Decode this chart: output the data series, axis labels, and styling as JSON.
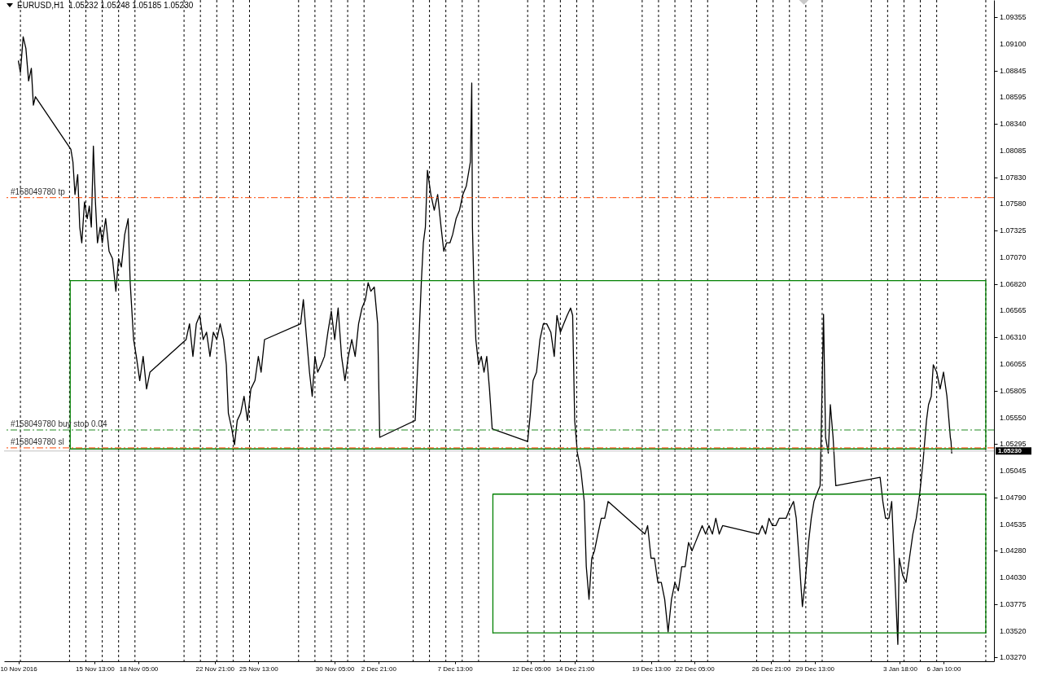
{
  "chart_data": {
    "type": "line",
    "title": "EURUSD,H1  1.05232 1.05248 1.05185 1.05230",
    "xlim": [
      "2016-11-10T00:00",
      "2017-01-09T12:00"
    ],
    "ylim": [
      1.0323,
      1.0952
    ],
    "xticks": [
      {
        "value": "2016-11-10T21:00",
        "label": "10 Nov 2016"
      },
      {
        "value": "2016-11-15T13:00",
        "label": "15 Nov 13:00"
      },
      {
        "value": "2016-11-18T05:00",
        "label": "18 Nov 05:00"
      },
      {
        "value": "2016-11-22T21:00",
        "label": "22 Nov 21:00"
      },
      {
        "value": "2016-11-25T13:00",
        "label": "25 Nov 13:00"
      },
      {
        "value": "2016-11-30T05:00",
        "label": "30 Nov 05:00"
      },
      {
        "value": "2016-12-02T21:00",
        "label": "2 Dec 21:00"
      },
      {
        "value": "2016-12-07T13:00",
        "label": "7 Dec 13:00"
      },
      {
        "value": "2016-12-12T05:00",
        "label": "12 Dec 05:00"
      },
      {
        "value": "2016-12-14T21:00",
        "label": "14 Dec 21:00"
      },
      {
        "value": "2016-12-19T13:00",
        "label": "19 Dec 13:00"
      },
      {
        "value": "2016-12-22T05:00",
        "label": "22 Dec 05:00"
      },
      {
        "value": "2016-12-26T21:00",
        "label": "26 Dec 21:00"
      },
      {
        "value": "2016-12-29T13:00",
        "label": "29 Dec 13:00"
      },
      {
        "value": "2017-01-03T18:00",
        "label": "3 Jan 18:00"
      },
      {
        "value": "2017-01-06T10:00",
        "label": "6 Jan 10:00"
      },
      {
        "value": "2016-11-11",
        "label": null
      },
      {
        "value": "2016-11-14",
        "label": null
      },
      {
        "value": "2016-11-15",
        "label": null
      },
      {
        "value": "2016-11-16",
        "label": null
      },
      {
        "value": "2016-11-17",
        "label": null
      },
      {
        "value": "2016-11-18",
        "label": null
      },
      {
        "value": "2016-11-21",
        "label": null
      },
      {
        "value": "2016-11-22",
        "label": null
      },
      {
        "value": "2016-11-23",
        "label": null
      },
      {
        "value": "2016-11-24",
        "label": null
      },
      {
        "value": "2016-11-25",
        "label": null
      },
      {
        "value": "2016-11-28",
        "label": null
      },
      {
        "value": "2016-11-29",
        "label": null
      },
      {
        "value": "2016-11-30",
        "label": null
      },
      {
        "value": "2016-12-01",
        "label": null
      },
      {
        "value": "2016-12-02",
        "label": null
      },
      {
        "value": "2016-12-05",
        "label": null
      },
      {
        "value": "2016-12-06",
        "label": null
      },
      {
        "value": "2016-12-07",
        "label": null
      },
      {
        "value": "2016-12-08",
        "label": null
      },
      {
        "value": "2016-12-09",
        "label": null
      },
      {
        "value": "2016-12-12",
        "label": null
      },
      {
        "value": "2016-12-13",
        "label": null
      },
      {
        "value": "2016-12-14",
        "label": null
      },
      {
        "value": "2016-12-15",
        "label": null
      },
      {
        "value": "2016-12-16",
        "label": null
      },
      {
        "value": "2016-12-19",
        "label": null
      },
      {
        "value": "2016-12-20",
        "label": null
      },
      {
        "value": "2016-12-21",
        "label": null
      },
      {
        "value": "2016-12-22",
        "label": null
      },
      {
        "value": "2016-12-23",
        "label": null
      },
      {
        "value": "2016-12-26",
        "label": null
      },
      {
        "value": "2016-12-27",
        "label": null
      },
      {
        "value": "2016-12-28",
        "label": null
      },
      {
        "value": "2016-12-29",
        "label": null
      },
      {
        "value": "2016-12-30",
        "label": null
      },
      {
        "value": "2017-01-02",
        "label": null
      },
      {
        "value": "2017-01-03",
        "label": null
      },
      {
        "value": "2017-01-04",
        "label": null
      },
      {
        "value": "2017-01-05",
        "label": null
      },
      {
        "value": "2017-01-06",
        "label": null
      },
      {
        "value": "2017-01-09",
        "label": null
      }
    ],
    "yticks": [
      1.09355,
      {
        "value": 1.091,
        "label": "1.09100"
      },
      1.08845,
      1.08595,
      {
        "value": 1.0834,
        "label": "1.08340"
      },
      1.08085,
      {
        "value": 1.0783,
        "label": "1.07830"
      },
      {
        "value": 1.0758,
        "label": "1.07580"
      },
      1.07325,
      {
        "value": 1.0707,
        "label": "1.07070"
      },
      {
        "value": 1.0682,
        "label": "1.06820"
      },
      1.06565,
      {
        "value": 1.0631,
        "label": "1.06310"
      },
      1.06055,
      1.05805,
      {
        "value": 1.0555,
        "label": "1.05550"
      },
      1.05295,
      1.05045,
      {
        "value": 1.0479,
        "label": "1.04790"
      },
      1.04535,
      {
        "value": 1.0428,
        "label": "1.04280"
      },
      {
        "value": 1.0403,
        "label": "1.04030"
      },
      1.03775,
      {
        "value": 1.0352,
        "label": "1.03520"
      },
      {
        "value": 1.0327,
        "label": "1.03270"
      }
    ],
    "grid": "x",
    "series": [
      {
        "color": "#000000",
        "x": [
          "2016-11-10T21:00",
          "2016-11-11T00:00",
          "2016-11-11T04:00",
          "2016-11-11T08:00",
          "2016-11-11T12:00",
          "2016-11-11T16:00",
          "2016-11-11T19:00",
          "2016-11-11T22:00",
          "2016-11-14T02:00",
          "2016-11-14T05:00",
          "2016-11-14T08:00",
          "2016-11-14T12:00",
          "2016-11-14T15:00",
          "2016-11-14T18:00",
          "2016-11-14T22:00",
          "2016-11-15T02:00",
          "2016-11-15T05:00",
          "2016-11-15T08:00",
          "2016-11-15T11:00",
          "2016-11-15T14:00",
          "2016-11-15T17:00",
          "2016-11-15T21:00",
          "2016-11-16T00:00",
          "2016-11-16T05:00",
          "2016-11-16T10:00",
          "2016-11-16T15:00",
          "2016-11-16T20:00",
          "2016-11-17T00:00",
          "2016-11-17T04:00",
          "2016-11-17T09:00",
          "2016-11-17T14:00",
          "2016-11-17T17:00",
          "2016-11-17T22:00",
          "2016-11-18T02:00",
          "2016-11-18T07:00",
          "2016-11-18T12:00",
          "2016-11-18T17:00",
          "2016-11-18T22:00",
          "2016-11-21T03:00",
          "2016-11-21T08:00",
          "2016-11-21T13:00",
          "2016-11-21T18:00",
          "2016-11-21T23:00",
          "2016-11-22T04:00",
          "2016-11-22T09:00",
          "2016-11-22T14:00",
          "2016-11-22T19:00",
          "2016-11-23T00:00",
          "2016-11-23T05:00",
          "2016-11-23T10:00",
          "2016-11-23T14:00",
          "2016-11-23T17:00",
          "2016-11-23T22:00",
          "2016-11-24T02:00",
          "2016-11-24T06:00",
          "2016-11-24T11:00",
          "2016-11-24T16:00",
          "2016-11-24T21:00",
          "2016-11-25T02:00",
          "2016-11-25T08:00",
          "2016-11-25T13:00",
          "2016-11-25T17:00",
          "2016-11-25T22:00",
          "2016-11-28T03:00",
          "2016-11-28T07:00",
          "2016-11-28T11:00",
          "2016-11-28T16:00",
          "2016-11-28T20:00",
          "2016-11-29T00:00",
          "2016-11-29T04:00",
          "2016-11-29T09:00",
          "2016-11-29T14:00",
          "2016-11-29T19:00",
          "2016-11-30T00:00",
          "2016-11-30T05:00",
          "2016-11-30T10:00",
          "2016-11-30T15:00",
          "2016-11-30T20:00",
          "2016-12-01T01:00",
          "2016-12-01T06:00",
          "2016-12-01T11:00",
          "2016-12-01T16:00",
          "2016-12-01T21:00",
          "2016-12-02T02:00",
          "2016-12-02T06:00",
          "2016-12-02T10:00",
          "2016-12-02T15:00",
          "2016-12-02T20:00",
          "2016-12-02T23:00",
          "2016-12-05T03:00",
          "2016-12-05T08:00",
          "2016-12-05T12:00",
          "2016-12-05T15:00",
          "2016-12-05T18:00",
          "2016-12-05T21:00",
          "2016-12-06T02:00",
          "2016-12-06T07:00",
          "2016-12-06T12:00",
          "2016-12-06T17:00",
          "2016-12-06T21:00",
          "2016-12-07T01:00",
          "2016-12-07T06:00",
          "2016-12-07T10:00",
          "2016-12-07T15:00",
          "2016-12-07T20:00",
          "2016-12-08T01:00",
          "2016-12-08T06:00",
          "2016-12-08T12:00",
          "2016-12-08T14:00",
          "2016-12-08T15:00",
          "2016-12-08T17:00",
          "2016-12-08T20:00",
          "2016-12-09T00:00",
          "2016-12-09T04:00",
          "2016-12-09T08:00",
          "2016-12-09T12:00",
          "2016-12-09T16:00",
          "2016-12-09T20:00",
          "2016-12-12T00:00",
          "2016-12-12T04:00",
          "2016-12-12T08:00",
          "2016-12-12T13:00",
          "2016-12-12T18:00",
          "2016-12-12T23:00",
          "2016-12-13T04:00",
          "2016-12-13T10:00",
          "2016-12-13T15:00",
          "2016-12-13T19:00",
          "2016-12-14T00:00",
          "2016-12-14T05:00",
          "2016-12-14T10:00",
          "2016-12-14T15:00",
          "2016-12-14T18:00",
          "2016-12-14T21:00",
          "2016-12-15T01:00",
          "2016-12-15T06:00",
          "2016-12-15T11:00",
          "2016-12-15T14:00",
          "2016-12-15T18:00",
          "2016-12-15T22:00",
          "2016-12-16T02:00",
          "2016-12-16T07:00",
          "2016-12-16T12:00",
          "2016-12-16T17:00",
          "2016-12-16T22:00",
          "2016-12-19T04:00",
          "2016-12-19T08:00",
          "2016-12-19T13:00",
          "2016-12-19T18:00",
          "2016-12-19T23:00",
          "2016-12-20T04:00",
          "2016-12-20T09:00",
          "2016-12-20T14:00",
          "2016-12-20T19:00",
          "2016-12-21T00:00",
          "2016-12-21T05:00",
          "2016-12-21T10:00",
          "2016-12-21T15:00",
          "2016-12-21T20:00",
          "2016-12-22T01:00",
          "2016-12-22T06:00",
          "2016-12-22T11:00",
          "2016-12-22T16:00",
          "2016-12-22T21:00",
          "2016-12-23T02:00",
          "2016-12-23T07:00",
          "2016-12-23T12:00",
          "2016-12-23T17:00",
          "2016-12-23T22:00",
          "2016-12-26T03:00",
          "2016-12-26T08:00",
          "2016-12-26T13:00",
          "2016-12-26T18:00",
          "2016-12-26T23:00",
          "2016-12-27T04:00",
          "2016-12-27T09:00",
          "2016-12-27T14:00",
          "2016-12-27T19:00",
          "2016-12-28T00:00",
          "2016-12-28T06:00",
          "2016-12-28T10:00",
          "2016-12-28T15:00",
          "2016-12-28T19:00",
          "2016-12-28T23:00",
          "2016-12-29T04:00",
          "2016-12-29T08:00",
          "2016-12-29T12:00",
          "2016-12-29T16:00",
          "2016-12-29T21:00",
          "2016-12-30T02:00",
          "2016-12-30T05:00",
          "2016-12-30T09:00",
          "2016-12-30T12:00",
          "2016-12-30T16:00",
          "2016-12-30T20:00",
          "2017-01-02T13:00",
          "2017-01-02T17:00",
          "2017-01-02T21:00",
          "2017-01-03T02:00",
          "2017-01-03T06:00",
          "2017-01-03T10:00",
          "2017-01-03T15:00",
          "2017-01-03T17:00",
          "2017-01-03T22:00",
          "2017-01-04T03:00",
          "2017-01-04T08:00",
          "2017-01-04T13:00",
          "2017-01-04T18:00",
          "2017-01-04T23:00",
          "2017-01-05T04:00",
          "2017-01-05T09:00",
          "2017-01-05T12:00",
          "2017-01-05T16:00",
          "2017-01-05T19:00",
          "2017-01-06T00:00",
          "2017-01-06T05:00",
          "2017-01-06T10:00",
          "2017-01-06T15:00",
          "2017-01-06T18:00",
          "2017-01-06T20:00",
          "2017-01-06T21:00",
          "2017-01-06T22:00"
        ],
        "values": [
          1.0894,
          1.0883,
          1.0917,
          1.0906,
          1.0875,
          1.0887,
          1.0852,
          1.086,
          1.081,
          1.0798,
          1.0767,
          1.0786,
          1.0736,
          1.0721,
          1.076,
          1.0744,
          1.0756,
          1.0736,
          1.0813,
          1.076,
          1.0721,
          1.0736,
          1.0721,
          1.0744,
          1.0713,
          1.0706,
          1.0675,
          1.0706,
          1.0698,
          1.0729,
          1.0744,
          1.0683,
          1.0629,
          1.0613,
          1.059,
          1.0613,
          1.0582,
          1.0598,
          1.0629,
          1.0644,
          1.0613,
          1.0644,
          1.0652,
          1.0629,
          1.0636,
          1.0613,
          1.0636,
          1.0629,
          1.0644,
          1.0629,
          1.0605,
          1.0559,
          1.0544,
          1.0529,
          1.0552,
          1.0559,
          1.0575,
          1.0552,
          1.0582,
          1.059,
          1.0613,
          1.0598,
          1.0629,
          1.0644,
          1.0667,
          1.0636,
          1.0598,
          1.0575,
          1.0613,
          1.0598,
          1.0605,
          1.0613,
          1.0636,
          1.0656,
          1.0629,
          1.0659,
          1.0613,
          1.059,
          1.0613,
          1.0629,
          1.0613,
          1.0644,
          1.0659,
          1.0667,
          1.0683,
          1.0675,
          1.0679,
          1.0644,
          1.0536,
          1.0552,
          1.0621,
          1.0683,
          1.0721,
          1.0736,
          1.079,
          1.0767,
          1.0752,
          1.0767,
          1.0736,
          1.0713,
          1.0721,
          1.0721,
          1.0729,
          1.0744,
          1.0752,
          1.0767,
          1.0775,
          1.0798,
          1.0873,
          1.0736,
          1.0683,
          1.0629,
          1.0605,
          1.0613,
          1.0598,
          1.0613,
          1.0582,
          1.0544,
          1.0532,
          1.0559,
          1.059,
          1.0598,
          1.0629,
          1.0644,
          1.0644,
          1.0636,
          1.0613,
          1.0652,
          1.0636,
          1.0644,
          1.0652,
          1.0659,
          1.0652,
          1.0552,
          1.0521,
          1.0505,
          1.0475,
          1.0413,
          1.0382,
          1.0421,
          1.0428,
          1.0444,
          1.0459,
          1.0459,
          1.0475,
          1.0444,
          1.0452,
          1.0421,
          1.0421,
          1.0398,
          1.0398,
          1.0382,
          1.0351,
          1.0382,
          1.0398,
          1.039,
          1.0413,
          1.0413,
          1.0436,
          1.0428,
          1.0436,
          1.0444,
          1.0452,
          1.0444,
          1.0452,
          1.0444,
          1.0459,
          1.0444,
          1.0452,
          1.0444,
          1.0452,
          1.0444,
          1.0459,
          1.0452,
          1.0452,
          1.0459,
          1.0459,
          1.0459,
          1.0467,
          1.0475,
          1.0459,
          1.0413,
          1.0375,
          1.0398,
          1.0436,
          1.0459,
          1.0475,
          1.0482,
          1.049,
          1.0653,
          1.0536,
          1.0521,
          1.0567,
          1.0536,
          1.049,
          1.0498,
          1.0475,
          1.0459,
          1.0459,
          1.0475,
          1.0413,
          1.0339,
          1.0421,
          1.0405,
          1.0398,
          1.0421,
          1.0444,
          1.0459,
          1.0482,
          1.0513,
          1.0552,
          1.0567,
          1.0575,
          1.0605,
          1.0598,
          1.0582,
          1.0598,
          1.0575,
          1.0552,
          1.0536,
          1.0532,
          1.0521
        ]
      },
      {
        "color": "#008000",
        "x": [
          "2016-11-14T01:00",
          "2016-11-14T01:00",
          "2017-01-09T00:00",
          "2017-01-09T00:00"
        ],
        "values": [
          1.0525,
          1.0685,
          1.0685,
          1.0525
        ]
      },
      {
        "color": "#008000",
        "x": [
          "2016-11-14T01:00",
          "2017-01-09T00:00"
        ],
        "values": [
          1.0525,
          1.0525
        ]
      },
      {
        "color": "#008000",
        "x": [
          "2016-12-09T21:00",
          "2016-12-09T21:00",
          "2017-01-09T00:00",
          "2017-01-09T00:00"
        ],
        "values": [
          1.035,
          1.0482,
          1.0482,
          1.035
        ]
      },
      {
        "color": "#008000",
        "x": [
          "2016-12-09T21:00",
          "2017-01-09T00:00"
        ],
        "values": [
          1.035,
          1.035
        ]
      }
    ],
    "ref_lines": [
      {
        "axis": "y",
        "value": 1.0764,
        "label": "#158049780 tp",
        "color": "#ff4500",
        "line_style": "dashed"
      },
      {
        "axis": "y",
        "value": 1.0543,
        "label": "#158049780 buy stop 0.04",
        "color": "#228b22",
        "line_style": "dashed"
      },
      {
        "axis": "y",
        "value": 1.0526,
        "label": "#158049780 sl",
        "color": "#ff4500",
        "line_style": "dashed"
      },
      {
        "axis": "y",
        "value": 1.0523,
        "label": "1.05230",
        "color": "#c0c0c0",
        "line_style": "solid"
      }
    ]
  }
}
